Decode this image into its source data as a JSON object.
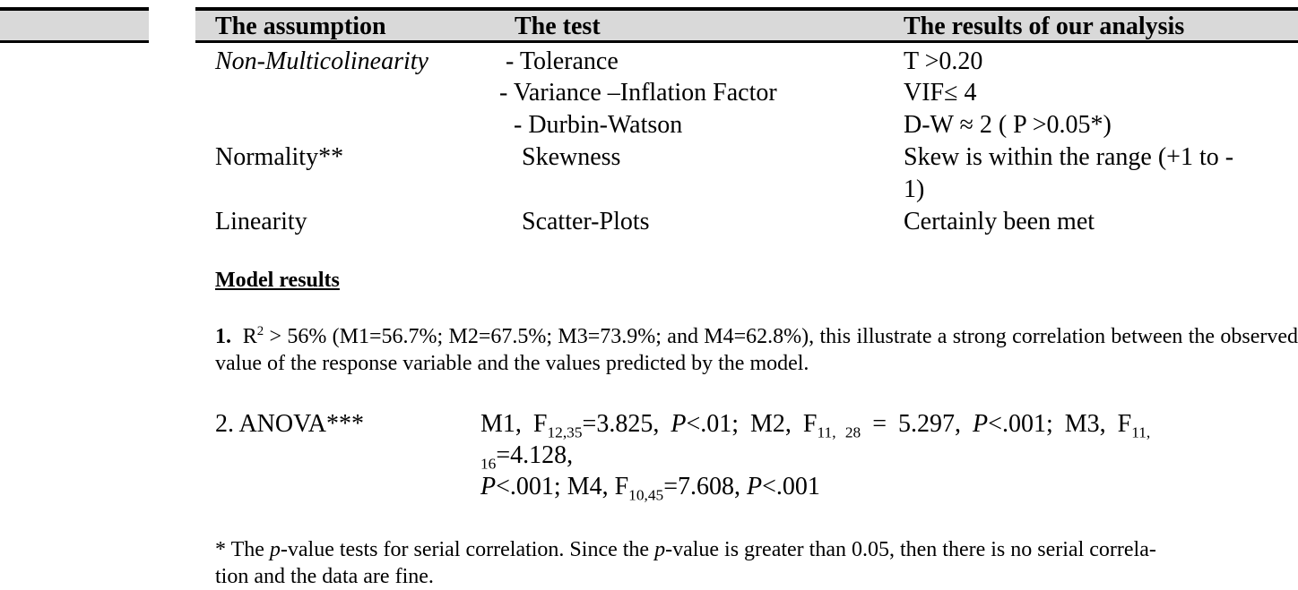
{
  "table": {
    "headers": [
      "The assumption",
      "The test",
      "The results of our analysis"
    ],
    "rows": [
      {
        "assumption": "Non-Multicolinearity",
        "test": "- Tolerance",
        "result": "T >0.20"
      },
      {
        "assumption": "",
        "test": "- Variance –Inflation Factor",
        "result": "VIF≤ 4"
      },
      {
        "assumption": "",
        "test": "- Durbin-Watson",
        "result": "D-W ≈ 2 ( P >0.05*)"
      },
      {
        "assumption": "Normality**",
        "test": "Skewness",
        "result": "Skew is within the range (+1 to -",
        "result_cont": "1)"
      },
      {
        "assumption": "Linearity",
        "test": "Scatter-Plots",
        "result": "Certainly been met"
      }
    ]
  },
  "model_results": {
    "heading": "Model results",
    "item1": {
      "number": "1.",
      "r": "R",
      "r_sup": "2",
      "text": " > 56% (M1=56.7%; M2=67.5%; M3=73.9%; and M4=62.8%), this illustrate a strong correlation between the observed value of the response variable and the values predicted by the model."
    },
    "item2": {
      "label": "2. ANOVA***",
      "m1": "M1, F",
      "m1_sub": "12,35",
      "m1_val": "=3.825, ",
      "p": "P",
      "m1_p": "<.01; ",
      "m2": "M2, F",
      "m2_sub": "11, 28",
      "m2_val": " = 5.297, ",
      "m2_p": "<.001; ",
      "m3": "M3, F",
      "m3_sub": "11,",
      "m3_sub2": "16",
      "m3_val": "=4.128,",
      "m3_p": "<.001; ",
      "m4": "M4, F",
      "m4_sub": "10,45",
      "m4_val": "=7.608, ",
      "m4_p": "<.001"
    }
  },
  "footnote": {
    "star": "* The ",
    "p": "p",
    "part1": "-value tests for serial correlation. Since the ",
    "part2": "-value is greater than 0.05, then there is no serial correla-",
    "line2": "tion and the data are fine."
  }
}
